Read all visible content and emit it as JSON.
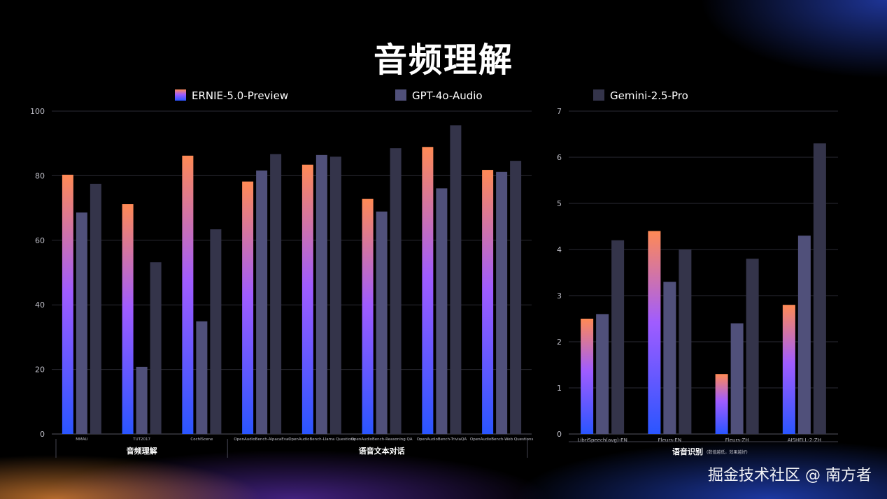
{
  "page": {
    "title": "音频理解",
    "watermark": "掘金技术社区 @ 南方者"
  },
  "colors": {
    "ernie_top": "#ff8a55",
    "ernie_mid": "#a05cff",
    "ernie_bottom": "#2a55ff",
    "gpt": "#50507a",
    "gemini": "#34344a",
    "grid": "#2a2a33",
    "axis_text": "#bfbfc8"
  },
  "legend": [
    {
      "name": "ERNIE-5.0-Preview",
      "swatch": "gradient"
    },
    {
      "name": "GPT-4o-Audio",
      "swatch": "gpt"
    },
    {
      "name": "Gemini-2.5-Pro",
      "swatch": "gemini"
    }
  ],
  "chart_data": [
    {
      "type": "bar",
      "ylim": [
        0,
        100
      ],
      "yticks": [
        0,
        20,
        40,
        60,
        80,
        100
      ],
      "categories": [
        "MMAU",
        "TUT2017",
        "CochlScene",
        "OpenAudioBench-AlpacaEval",
        "OpenAudioBench-Llama Questions",
        "OpenAudioBench-Reasoning QA",
        "OpenAudioBench-TriviaQA",
        "OpenAudioBench-Web Questions"
      ],
      "groups": [
        {
          "label": "音频理解",
          "from": 0,
          "to": 2
        },
        {
          "label": "语音文本对话",
          "from": 3,
          "to": 7
        }
      ],
      "series": [
        {
          "name": "ERNIE-5.0-Preview",
          "values": [
            80.3,
            71.2,
            86.2,
            78.2,
            83.4,
            72.8,
            88.9,
            81.8
          ]
        },
        {
          "name": "GPT-4o-Audio",
          "values": [
            68.6,
            20.8,
            34.9,
            81.6,
            86.4,
            68.9,
            76.1,
            81.2
          ]
        },
        {
          "name": "Gemini-2.5-Pro",
          "values": [
            77.5,
            53.2,
            63.4,
            86.7,
            85.9,
            88.5,
            95.6,
            84.6
          ]
        }
      ]
    },
    {
      "type": "bar",
      "ylim": [
        0,
        7
      ],
      "yticks": [
        0,
        1,
        2,
        3,
        4,
        5,
        6,
        7
      ],
      "categories": [
        "LibriSpeech(avg)-EN",
        "Fleurs-EN",
        "Fleurs-ZH",
        "AISHELL-2-ZH"
      ],
      "group_label": "语音识别",
      "group_note": "(数值越低，效果越好)",
      "series": [
        {
          "name": "ERNIE-5.0-Preview",
          "values": [
            2.5,
            4.4,
            1.3,
            2.8
          ]
        },
        {
          "name": "GPT-4o-Audio",
          "values": [
            2.6,
            3.3,
            2.4,
            4.3
          ]
        },
        {
          "name": "Gemini-2.5-Pro",
          "values": [
            4.2,
            4.0,
            3.8,
            6.3
          ]
        }
      ]
    }
  ]
}
